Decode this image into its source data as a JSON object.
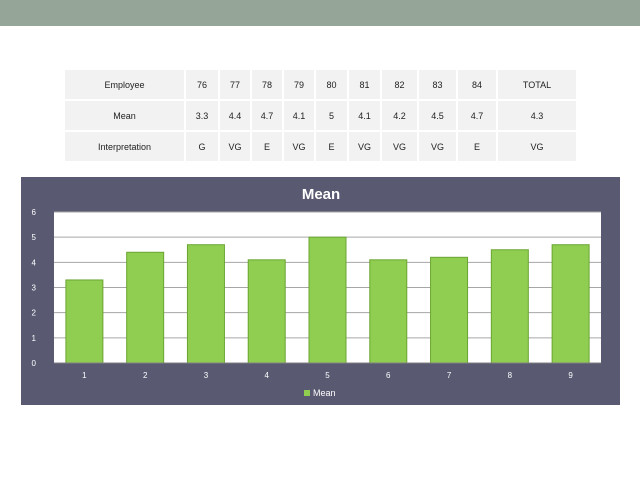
{
  "table": {
    "rows": [
      {
        "label": "Employee",
        "cells": [
          "76",
          "77",
          "78",
          "79",
          "80",
          "81",
          "82",
          "83",
          "84",
          "TOTAL"
        ]
      },
      {
        "label": "Mean",
        "cells": [
          "3.3",
          "4.4",
          "4.7",
          "4.1",
          "5",
          "4.1",
          "4.2",
          "4.5",
          "4.7",
          "4.3"
        ]
      },
      {
        "label": "Interpretation",
        "cells": [
          "G",
          "VG",
          "E",
          "VG",
          "E",
          "VG",
          "VG",
          "VG",
          "E",
          "VG"
        ]
      }
    ]
  },
  "chart_data": {
    "type": "bar",
    "title": "Mean",
    "categories": [
      "1",
      "2",
      "3",
      "4",
      "5",
      "6",
      "7",
      "8",
      "9"
    ],
    "series": [
      {
        "name": "Mean",
        "values": [
          3.3,
          4.4,
          4.7,
          4.1,
          5,
          4.1,
          4.2,
          4.5,
          4.7
        ]
      }
    ],
    "ylim": [
      0,
      6
    ],
    "yticks": [
      "0",
      "1",
      "2",
      "3",
      "4",
      "5",
      "6"
    ],
    "grid": true,
    "legend_position": "bottom",
    "colors": {
      "bar": "#8fce50",
      "bar_edge": "#6aa532",
      "background": "#595a72",
      "plot_area": "#ffffff",
      "gridline": "#a6a6a6",
      "text": "#ffffff"
    }
  }
}
